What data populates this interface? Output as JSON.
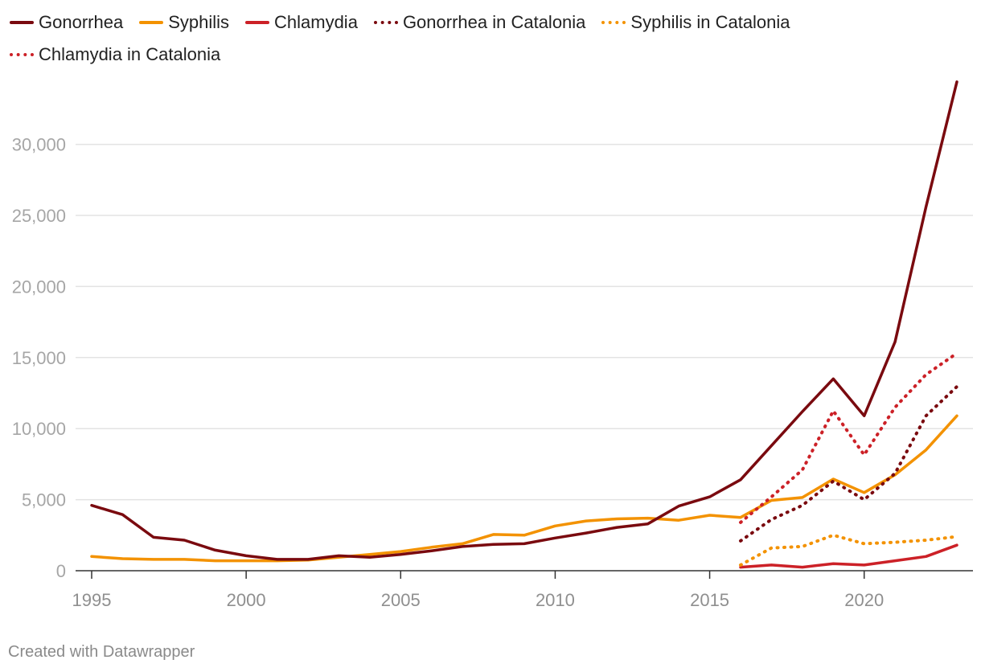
{
  "chart_data": {
    "type": "line",
    "title": "",
    "xlabel": "",
    "ylabel": "",
    "x": [
      1995,
      1996,
      1997,
      1998,
      1999,
      2000,
      2001,
      2002,
      2003,
      2004,
      2005,
      2006,
      2007,
      2008,
      2009,
      2010,
      2011,
      2012,
      2013,
      2014,
      2015,
      2016,
      2017,
      2018,
      2019,
      2020,
      2021,
      2022,
      2023
    ],
    "xlim": [
      1995,
      2023
    ],
    "ylim": [
      0,
      34500
    ],
    "x_ticks": [
      1995,
      2000,
      2005,
      2010,
      2015,
      2020
    ],
    "x_tick_labels": [
      "1995",
      "2000",
      "2005",
      "2010",
      "2015",
      "2020"
    ],
    "y_ticks": [
      0,
      5000,
      10000,
      15000,
      20000,
      25000,
      30000
    ],
    "y_tick_labels": [
      "0",
      "5,000",
      "10,000",
      "15,000",
      "20,000",
      "25,000",
      "30,000"
    ],
    "grid": true,
    "legend_position": "top-left",
    "series": [
      {
        "name": "Gonorrhea",
        "color": "#7a0a0f",
        "style": "solid",
        "values": [
          4600,
          3950,
          2350,
          2150,
          1450,
          1050,
          800,
          800,
          1050,
          950,
          1150,
          1400,
          1700,
          1850,
          1900,
          2300,
          2650,
          3050,
          3300,
          4550,
          5200,
          6400,
          8800,
          11200,
          13500,
          10900,
          16100,
          25600,
          34400
        ]
      },
      {
        "name": "Syphilis",
        "color": "#f39200",
        "style": "solid",
        "values": [
          1000,
          850,
          800,
          800,
          700,
          700,
          700,
          750,
          950,
          1150,
          1350,
          1650,
          1900,
          2550,
          2500,
          3150,
          3500,
          3650,
          3700,
          3550,
          3900,
          3750,
          4950,
          5150,
          6450,
          5500,
          6750,
          8500,
          10900
        ]
      },
      {
        "name": "Chlamydia",
        "color": "#cc2127",
        "style": "solid",
        "values": [
          null,
          null,
          null,
          null,
          null,
          null,
          null,
          null,
          null,
          null,
          null,
          null,
          null,
          null,
          null,
          null,
          null,
          null,
          null,
          null,
          null,
          250,
          400,
          250,
          500,
          400,
          700,
          1000,
          1800
        ]
      },
      {
        "name": "Gonorrhea in Catalonia",
        "color": "#7a0a0f",
        "style": "dotted",
        "values": [
          null,
          null,
          null,
          null,
          null,
          null,
          null,
          null,
          null,
          null,
          null,
          null,
          null,
          null,
          null,
          null,
          null,
          null,
          null,
          null,
          null,
          2100,
          3600,
          4600,
          6300,
          5000,
          6850,
          10900,
          12950
        ]
      },
      {
        "name": "Syphilis in Catalonia",
        "color": "#f39200",
        "style": "dotted",
        "values": [
          null,
          null,
          null,
          null,
          null,
          null,
          null,
          null,
          null,
          null,
          null,
          null,
          null,
          null,
          null,
          null,
          null,
          null,
          null,
          null,
          null,
          400,
          1600,
          1700,
          2500,
          1900,
          2000,
          2150,
          2400
        ]
      },
      {
        "name": "Chlamydia in Catalonia",
        "color": "#cc2127",
        "style": "dotted",
        "values": [
          null,
          null,
          null,
          null,
          null,
          null,
          null,
          null,
          null,
          null,
          null,
          null,
          null,
          null,
          null,
          null,
          null,
          null,
          null,
          null,
          null,
          3400,
          5200,
          7100,
          11250,
          8150,
          11500,
          13800,
          15300
        ]
      }
    ]
  },
  "credit": "Created with Datawrapper"
}
